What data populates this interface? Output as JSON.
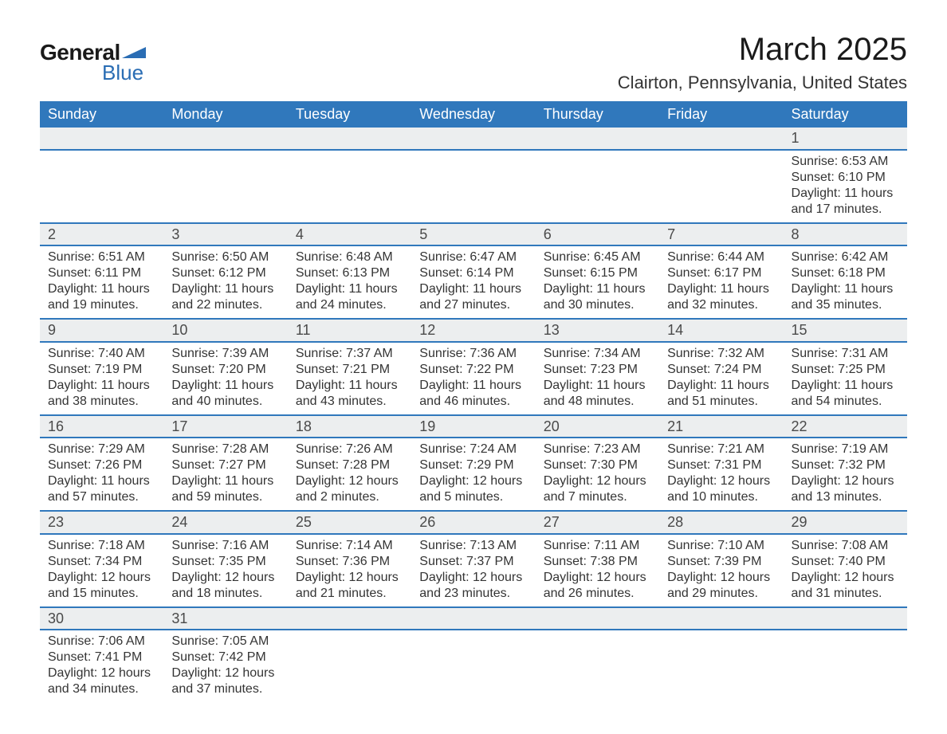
{
  "brand": {
    "general": "General",
    "blue": "Blue",
    "flag_color": "#2a6db4"
  },
  "title": "March 2025",
  "location": "Clairton, Pennsylvania, United States",
  "colors": {
    "header_bg": "#3078bc",
    "header_text": "#ffffff",
    "daynum_bg": "#eceeef",
    "row_border": "#3078bc",
    "body_text": "#343434"
  },
  "weekdays": [
    "Sunday",
    "Monday",
    "Tuesday",
    "Wednesday",
    "Thursday",
    "Friday",
    "Saturday"
  ],
  "weeks": [
    [
      null,
      null,
      null,
      null,
      null,
      null,
      {
        "n": "1",
        "sr": "Sunrise: 6:53 AM",
        "ss": "Sunset: 6:10 PM",
        "d1": "Daylight: 11 hours",
        "d2": "and 17 minutes."
      }
    ],
    [
      {
        "n": "2",
        "sr": "Sunrise: 6:51 AM",
        "ss": "Sunset: 6:11 PM",
        "d1": "Daylight: 11 hours",
        "d2": "and 19 minutes."
      },
      {
        "n": "3",
        "sr": "Sunrise: 6:50 AM",
        "ss": "Sunset: 6:12 PM",
        "d1": "Daylight: 11 hours",
        "d2": "and 22 minutes."
      },
      {
        "n": "4",
        "sr": "Sunrise: 6:48 AM",
        "ss": "Sunset: 6:13 PM",
        "d1": "Daylight: 11 hours",
        "d2": "and 24 minutes."
      },
      {
        "n": "5",
        "sr": "Sunrise: 6:47 AM",
        "ss": "Sunset: 6:14 PM",
        "d1": "Daylight: 11 hours",
        "d2": "and 27 minutes."
      },
      {
        "n": "6",
        "sr": "Sunrise: 6:45 AM",
        "ss": "Sunset: 6:15 PM",
        "d1": "Daylight: 11 hours",
        "d2": "and 30 minutes."
      },
      {
        "n": "7",
        "sr": "Sunrise: 6:44 AM",
        "ss": "Sunset: 6:17 PM",
        "d1": "Daylight: 11 hours",
        "d2": "and 32 minutes."
      },
      {
        "n": "8",
        "sr": "Sunrise: 6:42 AM",
        "ss": "Sunset: 6:18 PM",
        "d1": "Daylight: 11 hours",
        "d2": "and 35 minutes."
      }
    ],
    [
      {
        "n": "9",
        "sr": "Sunrise: 7:40 AM",
        "ss": "Sunset: 7:19 PM",
        "d1": "Daylight: 11 hours",
        "d2": "and 38 minutes."
      },
      {
        "n": "10",
        "sr": "Sunrise: 7:39 AM",
        "ss": "Sunset: 7:20 PM",
        "d1": "Daylight: 11 hours",
        "d2": "and 40 minutes."
      },
      {
        "n": "11",
        "sr": "Sunrise: 7:37 AM",
        "ss": "Sunset: 7:21 PM",
        "d1": "Daylight: 11 hours",
        "d2": "and 43 minutes."
      },
      {
        "n": "12",
        "sr": "Sunrise: 7:36 AM",
        "ss": "Sunset: 7:22 PM",
        "d1": "Daylight: 11 hours",
        "d2": "and 46 minutes."
      },
      {
        "n": "13",
        "sr": "Sunrise: 7:34 AM",
        "ss": "Sunset: 7:23 PM",
        "d1": "Daylight: 11 hours",
        "d2": "and 48 minutes."
      },
      {
        "n": "14",
        "sr": "Sunrise: 7:32 AM",
        "ss": "Sunset: 7:24 PM",
        "d1": "Daylight: 11 hours",
        "d2": "and 51 minutes."
      },
      {
        "n": "15",
        "sr": "Sunrise: 7:31 AM",
        "ss": "Sunset: 7:25 PM",
        "d1": "Daylight: 11 hours",
        "d2": "and 54 minutes."
      }
    ],
    [
      {
        "n": "16",
        "sr": "Sunrise: 7:29 AM",
        "ss": "Sunset: 7:26 PM",
        "d1": "Daylight: 11 hours",
        "d2": "and 57 minutes."
      },
      {
        "n": "17",
        "sr": "Sunrise: 7:28 AM",
        "ss": "Sunset: 7:27 PM",
        "d1": "Daylight: 11 hours",
        "d2": "and 59 minutes."
      },
      {
        "n": "18",
        "sr": "Sunrise: 7:26 AM",
        "ss": "Sunset: 7:28 PM",
        "d1": "Daylight: 12 hours",
        "d2": "and 2 minutes."
      },
      {
        "n": "19",
        "sr": "Sunrise: 7:24 AM",
        "ss": "Sunset: 7:29 PM",
        "d1": "Daylight: 12 hours",
        "d2": "and 5 minutes."
      },
      {
        "n": "20",
        "sr": "Sunrise: 7:23 AM",
        "ss": "Sunset: 7:30 PM",
        "d1": "Daylight: 12 hours",
        "d2": "and 7 minutes."
      },
      {
        "n": "21",
        "sr": "Sunrise: 7:21 AM",
        "ss": "Sunset: 7:31 PM",
        "d1": "Daylight: 12 hours",
        "d2": "and 10 minutes."
      },
      {
        "n": "22",
        "sr": "Sunrise: 7:19 AM",
        "ss": "Sunset: 7:32 PM",
        "d1": "Daylight: 12 hours",
        "d2": "and 13 minutes."
      }
    ],
    [
      {
        "n": "23",
        "sr": "Sunrise: 7:18 AM",
        "ss": "Sunset: 7:34 PM",
        "d1": "Daylight: 12 hours",
        "d2": "and 15 minutes."
      },
      {
        "n": "24",
        "sr": "Sunrise: 7:16 AM",
        "ss": "Sunset: 7:35 PM",
        "d1": "Daylight: 12 hours",
        "d2": "and 18 minutes."
      },
      {
        "n": "25",
        "sr": "Sunrise: 7:14 AM",
        "ss": "Sunset: 7:36 PM",
        "d1": "Daylight: 12 hours",
        "d2": "and 21 minutes."
      },
      {
        "n": "26",
        "sr": "Sunrise: 7:13 AM",
        "ss": "Sunset: 7:37 PM",
        "d1": "Daylight: 12 hours",
        "d2": "and 23 minutes."
      },
      {
        "n": "27",
        "sr": "Sunrise: 7:11 AM",
        "ss": "Sunset: 7:38 PM",
        "d1": "Daylight: 12 hours",
        "d2": "and 26 minutes."
      },
      {
        "n": "28",
        "sr": "Sunrise: 7:10 AM",
        "ss": "Sunset: 7:39 PM",
        "d1": "Daylight: 12 hours",
        "d2": "and 29 minutes."
      },
      {
        "n": "29",
        "sr": "Sunrise: 7:08 AM",
        "ss": "Sunset: 7:40 PM",
        "d1": "Daylight: 12 hours",
        "d2": "and 31 minutes."
      }
    ],
    [
      {
        "n": "30",
        "sr": "Sunrise: 7:06 AM",
        "ss": "Sunset: 7:41 PM",
        "d1": "Daylight: 12 hours",
        "d2": "and 34 minutes."
      },
      {
        "n": "31",
        "sr": "Sunrise: 7:05 AM",
        "ss": "Sunset: 7:42 PM",
        "d1": "Daylight: 12 hours",
        "d2": "and 37 minutes."
      },
      null,
      null,
      null,
      null,
      null
    ]
  ]
}
